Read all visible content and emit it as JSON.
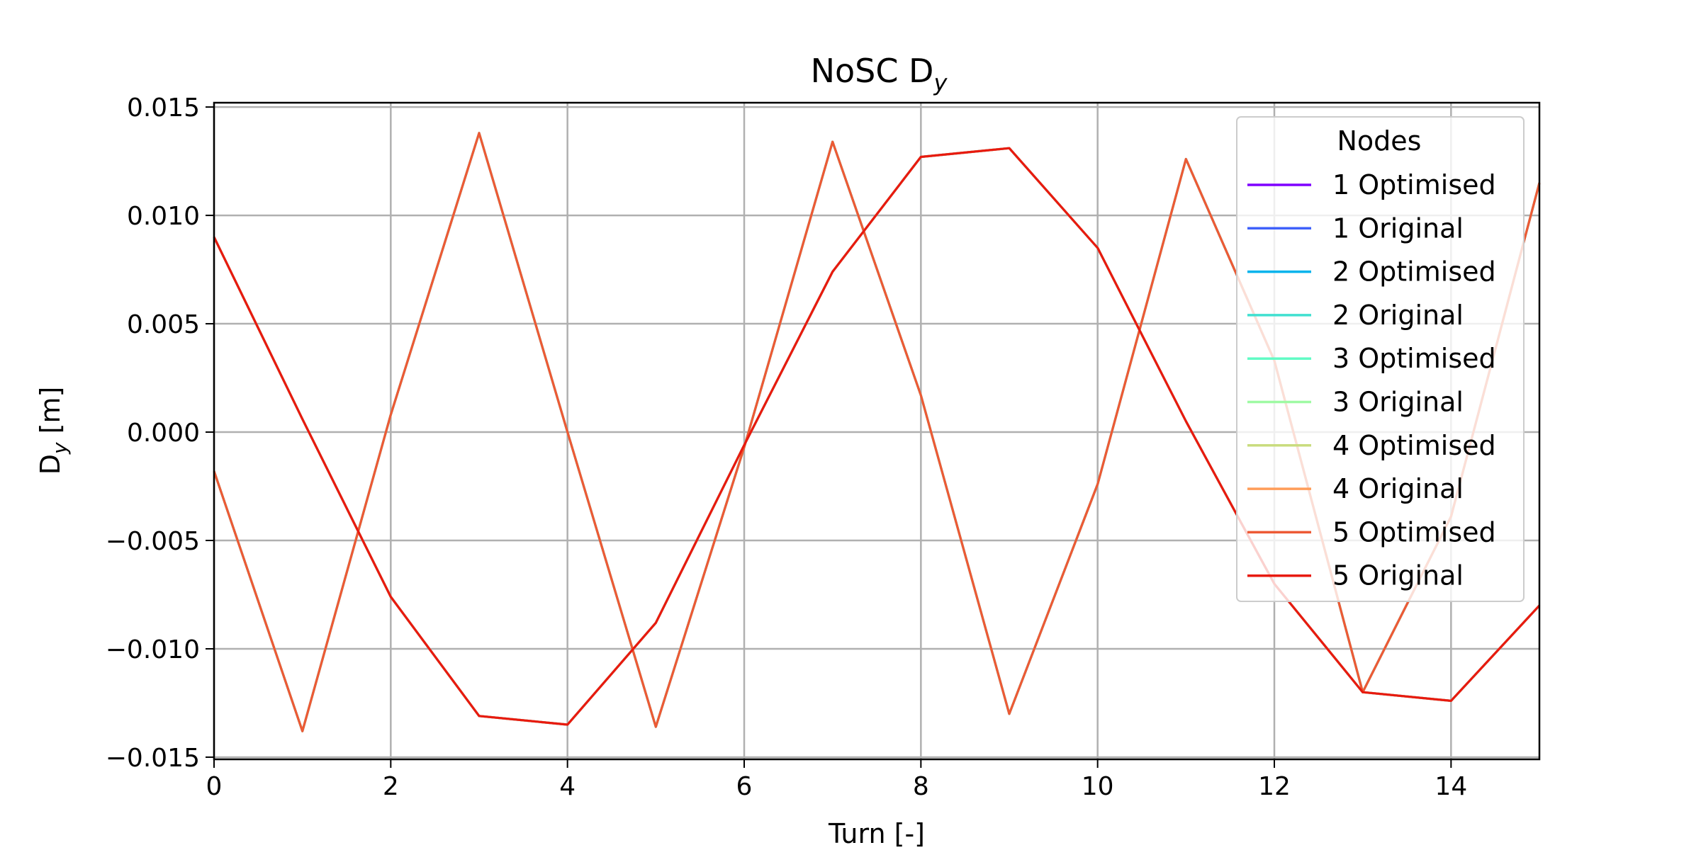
{
  "chart_data": {
    "type": "line",
    "title_main": "NoSC D",
    "title_sub": "y",
    "xlabel": "Turn [-]",
    "ylabel_main": "D",
    "ylabel_sub": "y",
    "ylabel_unit": " [m]",
    "xlim": [
      0,
      15
    ],
    "ylim": [
      -0.0151,
      0.0152
    ],
    "xticks": [
      0,
      2,
      4,
      6,
      8,
      10,
      12,
      14
    ],
    "xtick_labels": [
      "0",
      "2",
      "4",
      "6",
      "8",
      "10",
      "12",
      "14"
    ],
    "yticks": [
      0.015,
      0.01,
      0.005,
      0.0,
      -0.005,
      -0.01,
      -0.015
    ],
    "ytick_labels": [
      "0.015",
      "0.010",
      "0.005",
      "0.000",
      "−0.005",
      "−0.010",
      "−0.015"
    ],
    "grid": true,
    "legend_title": "Nodes",
    "legend_position": "upper-right",
    "x": [
      0,
      1,
      2,
      3,
      4,
      5,
      6,
      7,
      8,
      9,
      10,
      11,
      12,
      13,
      14,
      15
    ],
    "series": [
      {
        "name": "1 Optimised",
        "color": "#7f00ff",
        "values": [
          -0.0018,
          -0.0138,
          0.0008,
          0.0138,
          0.0,
          -0.0136,
          -0.0007,
          0.0134,
          0.0017,
          -0.013,
          -0.0024,
          0.0126,
          0.0033,
          -0.012,
          -0.0039,
          0.0115
        ]
      },
      {
        "name": "1 Original",
        "color": "#3f61fa",
        "values": [
          0.009,
          0.0006,
          -0.0076,
          -0.0131,
          -0.0135,
          -0.0088,
          -0.0006,
          0.0074,
          0.0127,
          0.0131,
          0.0085,
          0.0005,
          -0.007,
          -0.012,
          -0.0124,
          -0.008
        ]
      },
      {
        "name": "2 Optimised",
        "color": "#01b3ec",
        "values": [
          -0.0018,
          -0.0138,
          0.0008,
          0.0138,
          0.0,
          -0.0136,
          -0.0007,
          0.0134,
          0.0017,
          -0.013,
          -0.0024,
          0.0126,
          0.0033,
          -0.012,
          -0.0039,
          0.0115
        ]
      },
      {
        "name": "2 Original",
        "color": "#41e0d0",
        "values": [
          0.009,
          0.0006,
          -0.0076,
          -0.0131,
          -0.0135,
          -0.0088,
          -0.0006,
          0.0074,
          0.0127,
          0.0131,
          0.0085,
          0.0005,
          -0.007,
          -0.012,
          -0.0124,
          -0.008
        ]
      },
      {
        "name": "3 Optimised",
        "color": "#62fbc5",
        "values": [
          -0.0018,
          -0.0138,
          0.0008,
          0.0138,
          0.0,
          -0.0136,
          -0.0007,
          0.0134,
          0.0017,
          -0.013,
          -0.0024,
          0.0126,
          0.0033,
          -0.012,
          -0.0039,
          0.0115
        ]
      },
      {
        "name": "3 Original",
        "color": "#9ffaa4",
        "values": [
          0.009,
          0.0006,
          -0.0076,
          -0.0131,
          -0.0135,
          -0.0088,
          -0.0006,
          0.0074,
          0.0127,
          0.0131,
          0.0085,
          0.0005,
          -0.007,
          -0.012,
          -0.0124,
          -0.008
        ]
      },
      {
        "name": "4 Optimised",
        "color": "#c9dc7e",
        "values": [
          -0.0018,
          -0.0138,
          0.0008,
          0.0138,
          0.0,
          -0.0136,
          -0.0007,
          0.0134,
          0.0017,
          -0.013,
          -0.0024,
          0.0126,
          0.0033,
          -0.012,
          -0.0039,
          0.0115
        ]
      },
      {
        "name": "4 Original",
        "color": "#ff9d59",
        "values": [
          0.009,
          0.0006,
          -0.0076,
          -0.0131,
          -0.0135,
          -0.0088,
          -0.0006,
          0.0074,
          0.0127,
          0.0131,
          0.0085,
          0.0005,
          -0.007,
          -0.012,
          -0.0124,
          -0.008
        ]
      },
      {
        "name": "5 Optimised",
        "color": "#ed5a35",
        "values": [
          -0.0018,
          -0.0138,
          0.0008,
          0.0138,
          0.0,
          -0.0136,
          -0.0007,
          0.0134,
          0.0017,
          -0.013,
          -0.0024,
          0.0126,
          0.0033,
          -0.012,
          -0.0039,
          0.0115
        ]
      },
      {
        "name": "5 Original",
        "color": "#e81a0f",
        "values": [
          0.009,
          0.0006,
          -0.0076,
          -0.0131,
          -0.0135,
          -0.0088,
          -0.0006,
          0.0074,
          0.0127,
          0.0131,
          0.0085,
          0.0005,
          -0.007,
          -0.012,
          -0.0124,
          -0.008
        ]
      }
    ]
  }
}
